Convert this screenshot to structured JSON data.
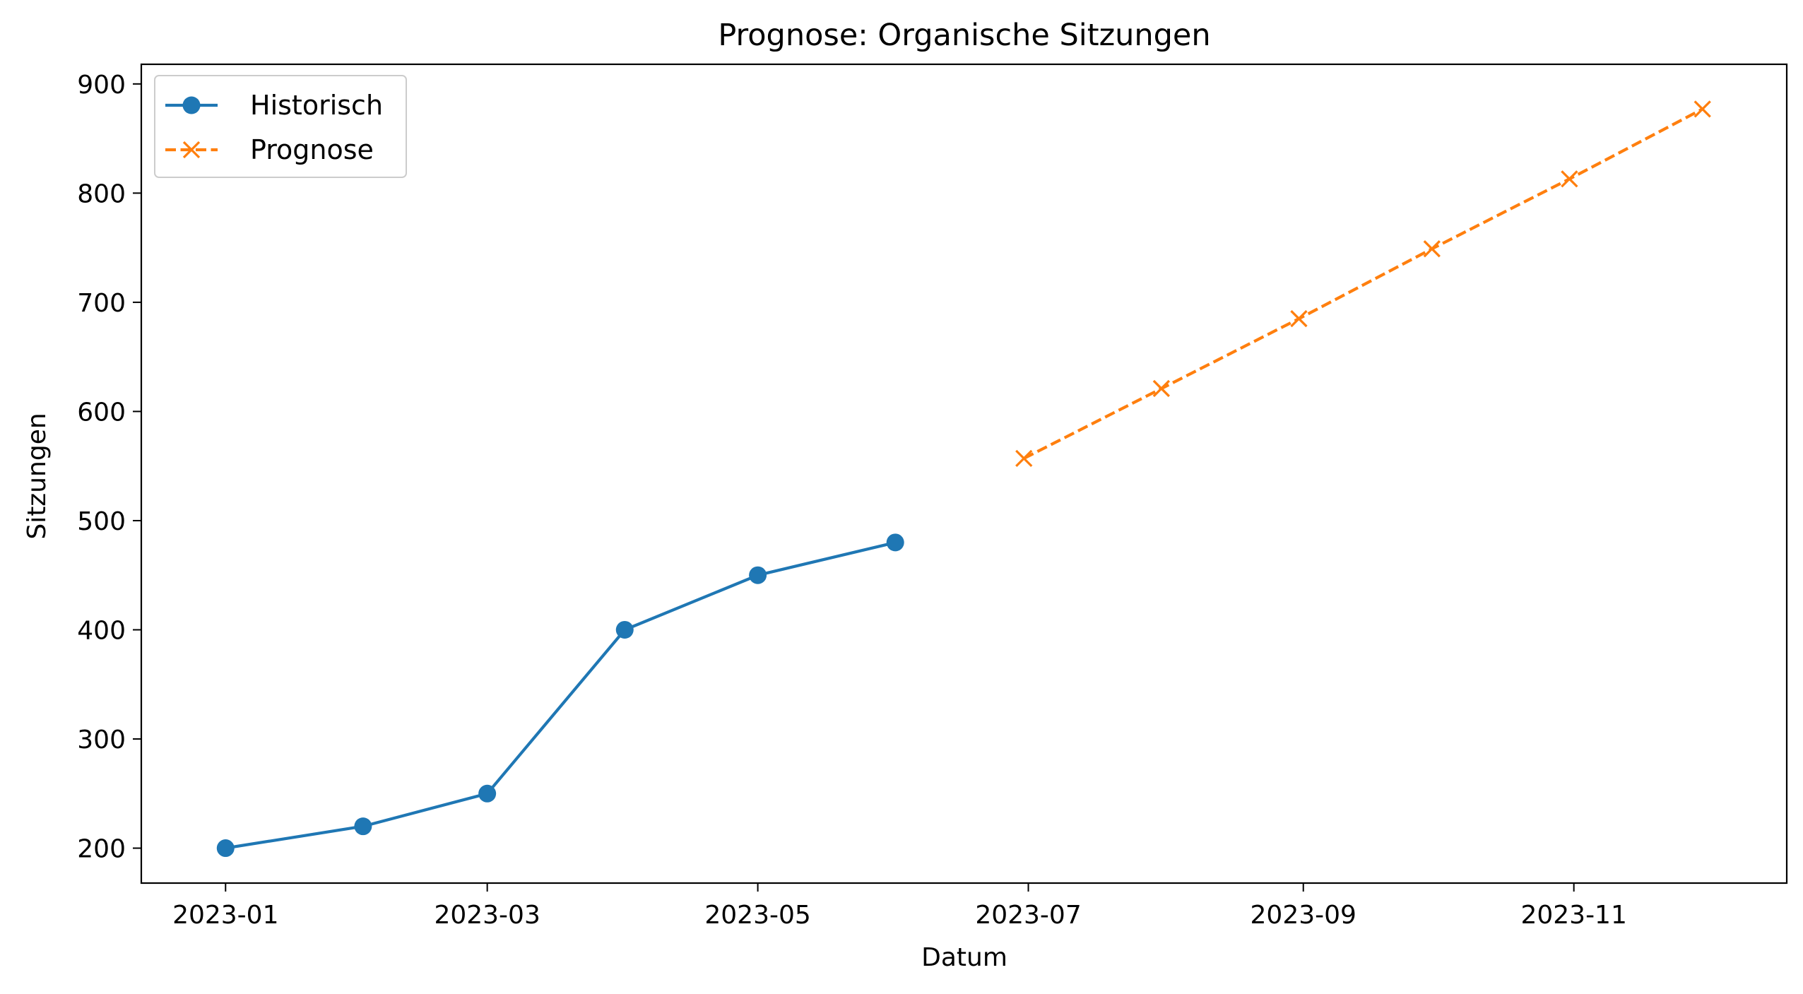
{
  "chart_data": {
    "type": "line",
    "title": "Prognose: Organische Sitzungen",
    "xlabel": "Datum",
    "ylabel": "Sitzungen",
    "ylim": [
      168,
      918
    ],
    "xlim": [
      "2022-12-13",
      "2023-12-19"
    ],
    "yticks": [
      200,
      300,
      400,
      500,
      600,
      700,
      800,
      900
    ],
    "xticks": [
      "2023-01-01",
      "2023-03-01",
      "2023-05-01",
      "2023-07-01",
      "2023-09-01",
      "2023-11-01"
    ],
    "xtick_labels": [
      "2023-01",
      "2023-03",
      "2023-05",
      "2023-07",
      "2023-09",
      "2023-11"
    ],
    "grid": false,
    "legend_position": "top-left",
    "series": [
      {
        "name": "Historisch",
        "color": "#1f77b4",
        "line_style": "solid",
        "marker": "circle",
        "x": [
          "2023-01-01",
          "2023-02-01",
          "2023-03-01",
          "2023-04-01",
          "2023-05-01",
          "2023-06-01"
        ],
        "y": [
          200,
          220,
          250,
          400,
          450,
          480
        ]
      },
      {
        "name": "Prognose",
        "color": "#ff7f0e",
        "line_style": "dashed",
        "marker": "x",
        "x": [
          "2023-06-30",
          "2023-07-31",
          "2023-08-31",
          "2023-09-30",
          "2023-10-31",
          "2023-11-30"
        ],
        "y": [
          557,
          621,
          685,
          749,
          813,
          877
        ]
      }
    ]
  }
}
